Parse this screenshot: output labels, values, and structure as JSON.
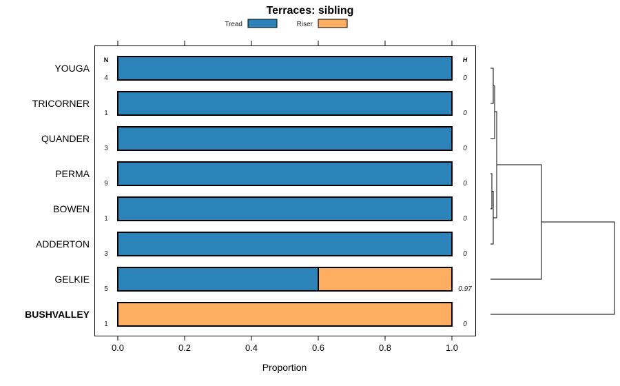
{
  "chart_data": {
    "type": "bar",
    "orientation": "horizontal-stacked",
    "title": "Terraces: sibling",
    "xlabel": "Proportion",
    "xlim": [
      0,
      1
    ],
    "xticks": [
      "0.0",
      "0.2",
      "0.4",
      "0.6",
      "0.8",
      "1.0"
    ],
    "xtick_values": [
      0,
      0.2,
      0.4,
      0.6,
      0.8,
      1.0
    ],
    "legend": {
      "placement": "top",
      "entries": [
        "Tread",
        "Riser"
      ]
    },
    "colors": {
      "Tread": "#2c83b9",
      "Riser": "#fdae61"
    },
    "n_header": "N",
    "h_header": "H",
    "categories": [
      "YOUGA",
      "TRICORNER",
      "QUANDER",
      "PERMA",
      "BOWEN",
      "ADDERTON",
      "GELKIE",
      "BUSHVALLEY"
    ],
    "bold_category": "BUSHVALLEY",
    "series": [
      {
        "name": "Tread",
        "values": [
          1,
          1,
          1,
          1,
          1,
          1,
          0.6,
          0
        ]
      },
      {
        "name": "Riser",
        "values": [
          0,
          0,
          0,
          0,
          0,
          0,
          0.4,
          1
        ]
      }
    ],
    "n": [
      "4",
      "1",
      "3",
      "9",
      "1",
      "3",
      "5",
      "1"
    ],
    "h": [
      "0",
      "0",
      "0",
      "0",
      "0",
      "0",
      "0.97",
      "0"
    ]
  }
}
